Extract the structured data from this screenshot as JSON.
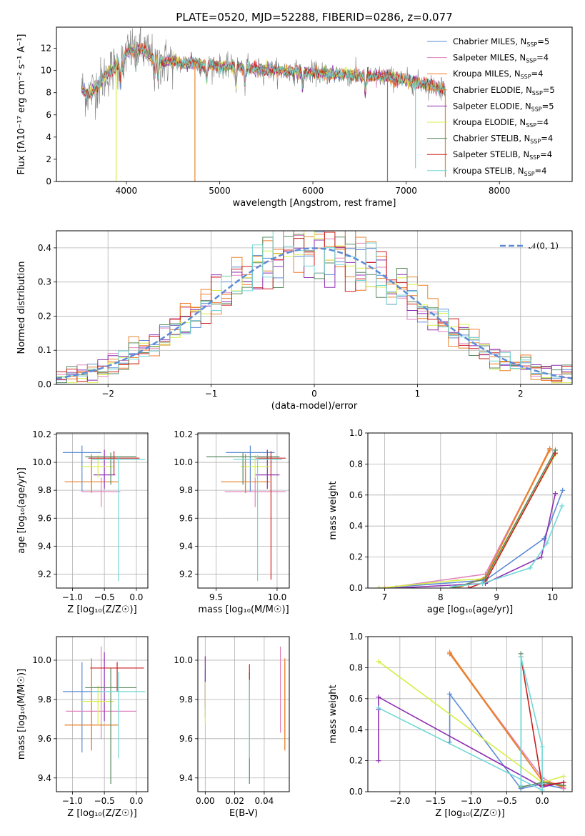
{
  "figure": {
    "title": "PLATE=0520, MJD=52288, FIBERID=0286, z=0.077"
  },
  "colors": {
    "Chabrier MILES": "#5b8bd6",
    "Salpeter MILES": "#e083bd",
    "Kroupa MILES": "#f27a29",
    "Chabrier ELODIE": "#e6852e",
    "Salpeter ELODIE": "#8e2fb3",
    "Kroupa ELODIE": "#d7ef45",
    "Chabrier STELIB": "#5a8a60",
    "Salpeter STELIB": "#cc1f1f",
    "Kroupa STELIB": "#72d7d6",
    "data": "#808080",
    "normal": "#5b8bd6",
    "grid": "#b0b0b0"
  },
  "chart_data": [
    {
      "id": "spectrum",
      "type": "line",
      "title": "PLATE=0520, MJD=52288, FIBERID=0286, z=0.077",
      "xlabel": "wavelength [Angstrom, rest frame]",
      "ylabel": "Flux [fλ10⁻¹⁷ erg cm⁻² s⁻¹ A⁻¹]",
      "xlim": [
        3250,
        8780
      ],
      "ylim": [
        0,
        13.9
      ],
      "xticks": [
        4000,
        5000,
        6000,
        7000,
        8000
      ],
      "yticks": [
        0,
        2,
        4,
        6,
        8,
        10,
        12
      ],
      "grid": false,
      "legend_position": "top-right",
      "legend": [
        {
          "name": "Chabrier MILES",
          "nssp": "5"
        },
        {
          "name": "Salpeter MILES",
          "nssp": "4"
        },
        {
          "name": "Kroupa MILES",
          "nssp": "4"
        },
        {
          "name": "Chabrier ELODIE",
          "nssp": "5"
        },
        {
          "name": "Salpeter ELODIE",
          "nssp": "5"
        },
        {
          "name": "Kroupa ELODIE",
          "nssp": "4"
        },
        {
          "name": "Chabrier STELIB",
          "nssp": "4"
        },
        {
          "name": "Salpeter STELIB",
          "nssp": "4"
        },
        {
          "name": "Kroupa STELIB",
          "nssp": "4"
        }
      ],
      "continuum": {
        "x": [
          3520,
          3600,
          3700,
          3800,
          3900,
          4000,
          4100,
          4200,
          4300,
          4400,
          4500,
          4600,
          4700,
          4800,
          5000,
          5200,
          5400,
          5600,
          5800,
          6000,
          6200,
          6400,
          6600,
          6800,
          7000,
          7200,
          7420
        ],
        "y": [
          8.3,
          7.9,
          8.7,
          9.8,
          10.4,
          11.6,
          12.0,
          11.7,
          11.0,
          10.7,
          10.8,
          10.6,
          10.7,
          10.5,
          10.4,
          10.3,
          10.1,
          10.0,
          9.9,
          9.8,
          9.7,
          9.6,
          9.5,
          9.4,
          9.1,
          8.8,
          8.3
        ]
      },
      "model_glitches": [
        {
          "x": 3890,
          "y": 0
        },
        {
          "x": 4735,
          "y": 0
        },
        {
          "x": 6800,
          "y": 0
        },
        {
          "x": 7100,
          "y": 1.2
        },
        {
          "x": 7420,
          "y": 0.4
        }
      ]
    },
    {
      "id": "residuals",
      "type": "histogram",
      "xlabel": "(data-model)/error",
      "ylabel": "Normed distribution",
      "xlim": [
        -2.5,
        2.5
      ],
      "ylim": [
        0,
        0.45
      ],
      "xticks": [
        -2,
        -1,
        0,
        1,
        2
      ],
      "yticks": [
        0.0,
        0.1,
        0.2,
        0.3,
        0.4
      ],
      "grid": true,
      "legend_position": "top-right",
      "normal_label": "𝒩(0, 1)",
      "bins": 50
    },
    {
      "id": "age_vs_Z",
      "type": "errorbar",
      "xlabel": "Z [log₁₀(Z/Z☉)]",
      "ylabel": "age  [log₁₀(age/yr)]",
      "xlim": [
        -1.25,
        0.18
      ],
      "ylim": [
        9.1,
        10.21
      ],
      "xticks": [
        -1.0,
        -0.5,
        0.0
      ],
      "yticks": [
        9.2,
        9.4,
        9.6,
        9.8,
        10.0,
        10.2
      ],
      "grid": true,
      "points": [
        {
          "model": "Chabrier MILES",
          "x": -0.85,
          "xerr": 0.3,
          "y": 10.07,
          "yerr": [
            0.28,
            0.05
          ]
        },
        {
          "model": "Salpeter MILES",
          "x": -0.55,
          "xerr": 0.3,
          "y": 9.79,
          "yerr": [
            0.11,
            0.1
          ]
        },
        {
          "model": "Kroupa MILES",
          "x": -0.7,
          "xerr": 0.42,
          "y": 9.86,
          "yerr": [
            0.08,
            0.2
          ]
        },
        {
          "model": "Chabrier ELODIE",
          "x": -0.7,
          "xerr": 0.42,
          "y": 9.86,
          "yerr": [
            0.07,
            0.17
          ]
        },
        {
          "model": "Salpeter ELODIE",
          "x": -0.5,
          "xerr": 0.17,
          "y": 9.91,
          "yerr": [
            0.1,
            0.18
          ]
        },
        {
          "model": "Kroupa ELODIE",
          "x": -0.6,
          "xerr": 0.25,
          "y": 9.97,
          "yerr": [
            0.08,
            0.08
          ]
        },
        {
          "model": "Chabrier STELIB",
          "x": -0.4,
          "xerr": 0.4,
          "y": 10.04,
          "yerr": [
            0.2,
            0.03
          ]
        },
        {
          "model": "Salpeter STELIB",
          "x": -0.35,
          "xerr": 0.4,
          "y": 10.03,
          "yerr": [
            0.12,
            0.05
          ]
        },
        {
          "model": "Kroupa STELIB",
          "x": -0.28,
          "xerr": 0.42,
          "y": 10.02,
          "yerr": [
            0.87,
            0.02
          ]
        }
      ]
    },
    {
      "id": "age_vs_mass",
      "type": "errorbar",
      "xlabel": "mass [log₁₀(M/M☉)]",
      "ylabel": "",
      "xlim": [
        9.35,
        10.1
      ],
      "ylim": [
        9.1,
        10.21
      ],
      "xticks": [
        9.5,
        10.0
      ],
      "yticks": [
        9.2,
        9.4,
        9.6,
        9.8,
        10.0,
        10.2
      ],
      "grid": true,
      "points": [
        {
          "model": "Chabrier MILES",
          "x": 9.78,
          "xerr": 0.2,
          "y": 10.07,
          "yerr": [
            0.28,
            0.05
          ]
        },
        {
          "model": "Salpeter MILES",
          "x": 9.82,
          "xerr": 0.25,
          "y": 9.79,
          "yerr": [
            0.11,
            0.1
          ]
        },
        {
          "model": "Kroupa MILES",
          "x": 9.74,
          "xerr": 0.2,
          "y": 9.86,
          "yerr": [
            0.08,
            0.2
          ]
        },
        {
          "model": "Chabrier ELODIE",
          "x": 9.74,
          "xerr": 0.2,
          "y": 9.86,
          "yerr": [
            0.07,
            0.17
          ]
        },
        {
          "model": "Salpeter ELODIE",
          "x": 9.92,
          "xerr": 0.1,
          "y": 9.91,
          "yerr": [
            0.1,
            0.18
          ]
        },
        {
          "model": "Kroupa ELODIE",
          "x": 9.82,
          "xerr": 0.12,
          "y": 9.97,
          "yerr": [
            0.08,
            0.08
          ]
        },
        {
          "model": "Chabrier STELIB",
          "x": 9.72,
          "xerr": 0.3,
          "y": 10.04,
          "yerr": [
            0.2,
            0.03
          ]
        },
        {
          "model": "Salpeter STELIB",
          "x": 9.95,
          "xerr": 0.12,
          "y": 10.03,
          "yerr": [
            0.87,
            0.05
          ]
        },
        {
          "model": "Kroupa STELIB",
          "x": 9.84,
          "xerr": 0.2,
          "y": 10.02,
          "yerr": [
            0.87,
            0.03
          ]
        }
      ]
    },
    {
      "id": "weight_vs_age",
      "type": "line",
      "xlabel": "age  [log₁₀(age/yr)]",
      "ylabel": "mass weight",
      "xlim": [
        6.7,
        10.35
      ],
      "ylim": [
        0,
        1.0
      ],
      "xticks": [
        7,
        8,
        9,
        10
      ],
      "yticks": [
        0.0,
        0.2,
        0.4,
        0.6,
        0.8,
        1.0
      ],
      "grid": true,
      "series": [
        {
          "model": "Chabrier MILES",
          "x": [
            6.9,
            8.8,
            9.85,
            10.18
          ],
          "y": [
            0.0,
            0.05,
            0.32,
            0.63
          ]
        },
        {
          "model": "Salpeter MILES",
          "x": [
            7.0,
            8.8,
            9.95
          ],
          "y": [
            0.0,
            0.09,
            0.89
          ]
        },
        {
          "model": "Kroupa MILES",
          "x": [
            8.3,
            8.8,
            9.95
          ],
          "y": [
            0.0,
            0.07,
            0.9
          ]
        },
        {
          "model": "Chabrier ELODIE",
          "x": [
            8.3,
            8.8,
            9.95
          ],
          "y": [
            0.0,
            0.07,
            0.89
          ]
        },
        {
          "model": "Salpeter ELODIE",
          "x": [
            7.2,
            8.8,
            9.8,
            10.05
          ],
          "y": [
            0.0,
            0.03,
            0.2,
            0.61
          ]
        },
        {
          "model": "Kroupa ELODIE",
          "x": [
            6.9,
            8.3,
            8.8,
            10.05
          ],
          "y": [
            0.0,
            0.05,
            0.06,
            0.86
          ]
        },
        {
          "model": "Chabrier STELIB",
          "x": [
            8.2,
            8.8,
            10.05
          ],
          "y": [
            0.0,
            0.06,
            0.89
          ]
        },
        {
          "model": "Salpeter STELIB",
          "x": [
            8.5,
            8.8,
            10.05
          ],
          "y": [
            0.0,
            0.04,
            0.87
          ]
        },
        {
          "model": "Kroupa STELIB",
          "x": [
            8.2,
            8.75,
            9.6,
            9.9,
            10.17
          ],
          "y": [
            0.01,
            0.03,
            0.13,
            0.29,
            0.53
          ]
        }
      ]
    },
    {
      "id": "mass_vs_Z",
      "type": "errorbar",
      "xlabel": "Z [log₁₀(Z/Z☉)]",
      "ylabel": "mass [log₁₀(M/M☉)]",
      "xlim": [
        -1.25,
        0.18
      ],
      "ylim": [
        9.33,
        10.12
      ],
      "xticks": [
        -1.0,
        -0.5,
        0.0
      ],
      "yticks": [
        9.4,
        9.6,
        9.8,
        10.0
      ],
      "grid": true,
      "points": [
        {
          "model": "Chabrier MILES",
          "x": -0.85,
          "xerr": 0.3,
          "y": 9.84,
          "yerr": [
            0.31,
            0.15
          ]
        },
        {
          "model": "Salpeter MILES",
          "x": -0.55,
          "xerr": 0.55,
          "y": 9.74,
          "yerr": [
            0.14,
            0.33
          ]
        },
        {
          "model": "Kroupa MILES",
          "x": -0.7,
          "xerr": 0.42,
          "y": 9.67,
          "yerr": [
            0.13,
            0.34
          ]
        },
        {
          "model": "Chabrier ELODIE",
          "x": -0.7,
          "xerr": 0.42,
          "y": 9.67,
          "yerr": [
            0.12,
            0.32
          ]
        },
        {
          "model": "Salpeter ELODIE",
          "x": -0.5,
          "xerr": 0.17,
          "y": 9.86,
          "yerr": [
            0.17,
            0.18
          ]
        },
        {
          "model": "Kroupa ELODIE",
          "x": -0.6,
          "xerr": 0.25,
          "y": 9.79,
          "yerr": [
            0.12,
            0.08
          ]
        },
        {
          "model": "Chabrier STELIB",
          "x": -0.4,
          "xerr": 0.4,
          "y": 9.86,
          "yerr": [
            0.49,
            0.1
          ]
        },
        {
          "model": "Salpeter STELIB",
          "x": -0.3,
          "xerr": 0.42,
          "y": 9.96,
          "yerr": [
            0.12,
            0.03
          ]
        },
        {
          "model": "Kroupa STELIB",
          "x": -0.28,
          "xerr": 0.42,
          "y": 9.84,
          "yerr": [
            0.34,
            0.1
          ]
        }
      ]
    },
    {
      "id": "mass_vs_ebv",
      "type": "errorbar",
      "xlabel": "E(B-V)",
      "ylabel": "",
      "xlim": [
        -0.005,
        0.057
      ],
      "ylim": [
        9.33,
        10.12
      ],
      "xticks": [
        0.0,
        0.02,
        0.04
      ],
      "yticks": [
        9.4,
        9.6,
        9.8,
        10.0
      ],
      "grid": true,
      "points": [
        {
          "model": "Chabrier MILES",
          "x": 0.0,
          "y": 9.84,
          "yerr": [
            0.13,
            0.11
          ]
        },
        {
          "model": "Salpeter MILES",
          "x": 0.051,
          "y": 9.74,
          "yerr": [
            0.11,
            0.33
          ]
        },
        {
          "model": "Kroupa MILES",
          "x": 0.054,
          "y": 9.67,
          "yerr": [
            0.13,
            0.34
          ]
        },
        {
          "model": "Chabrier ELODIE",
          "x": 0.054,
          "y": 9.67,
          "yerr": [
            0.12,
            0.32
          ]
        },
        {
          "model": "Salpeter ELODIE",
          "x": 0.0,
          "y": 9.86,
          "yerr": [
            0.1,
            0.16
          ]
        },
        {
          "model": "Kroupa ELODIE",
          "x": 0.0,
          "y": 9.79,
          "yerr": [
            0.12,
            0.1
          ]
        },
        {
          "model": "Chabrier STELIB",
          "x": 0.03,
          "y": 9.86,
          "yerr": [
            0.49,
            0.08
          ]
        },
        {
          "model": "Salpeter STELIB",
          "x": 0.03,
          "y": 9.9,
          "yerr": [
            0.1,
            0.08
          ]
        },
        {
          "model": "Kroupa STELIB",
          "x": 0.03,
          "y": 9.84,
          "yerr": [
            0.34,
            0.06
          ]
        }
      ]
    },
    {
      "id": "weight_vs_Z",
      "type": "line",
      "xlabel": "Z [log₁₀(Z/Z☉)]",
      "ylabel": "mass weight",
      "xlim": [
        -2.45,
        0.42
      ],
      "ylim": [
        0,
        1.0
      ],
      "xticks": [
        -2.0,
        -1.5,
        -1.0,
        -0.5,
        0.0
      ],
      "yticks": [
        0.0,
        0.2,
        0.4,
        0.6,
        0.8,
        1.0
      ],
      "grid": true,
      "series": [
        {
          "model": "Chabrier MILES",
          "x": [
            -1.3,
            -1.3,
            -0.3,
            0.0,
            0.3
          ],
          "y": [
            0.32,
            0.63,
            0.02,
            0.05,
            0.02
          ]
        },
        {
          "model": "Salpeter MILES",
          "x": [
            -1.3,
            0.0,
            0.3
          ],
          "y": [
            0.89,
            0.09,
            0.02
          ]
        },
        {
          "model": "Kroupa MILES",
          "x": [
            -1.3,
            0.0,
            0.3
          ],
          "y": [
            0.9,
            0.07,
            0.03
          ]
        },
        {
          "model": "Chabrier ELODIE",
          "x": [
            -1.3,
            0.0,
            0.3
          ],
          "y": [
            0.89,
            0.07,
            0.04
          ]
        },
        {
          "model": "Salpeter ELODIE",
          "x": [
            -2.3,
            -2.3,
            -2.3,
            0.0,
            0.3
          ],
          "y": [
            0.2,
            0.53,
            0.61,
            0.03,
            0.06
          ]
        },
        {
          "model": "Kroupa ELODIE",
          "x": [
            -2.3,
            0.0,
            0.3
          ],
          "y": [
            0.84,
            0.06,
            0.1
          ]
        },
        {
          "model": "Chabrier STELIB",
          "x": [
            -0.3,
            -0.3,
            0.0,
            0.3
          ],
          "y": [
            0.89,
            0.03,
            0.06,
            0.04
          ]
        },
        {
          "model": "Salpeter STELIB",
          "x": [
            -0.3,
            0.0,
            0.3
          ],
          "y": [
            0.87,
            0.04,
            0.06
          ]
        },
        {
          "model": "Kroupa STELIB",
          "x": [
            -2.3,
            0.0,
            0.0,
            -0.3,
            -0.3
          ],
          "y": [
            0.54,
            0.01,
            0.29,
            0.87,
            0.04
          ]
        }
      ]
    }
  ]
}
